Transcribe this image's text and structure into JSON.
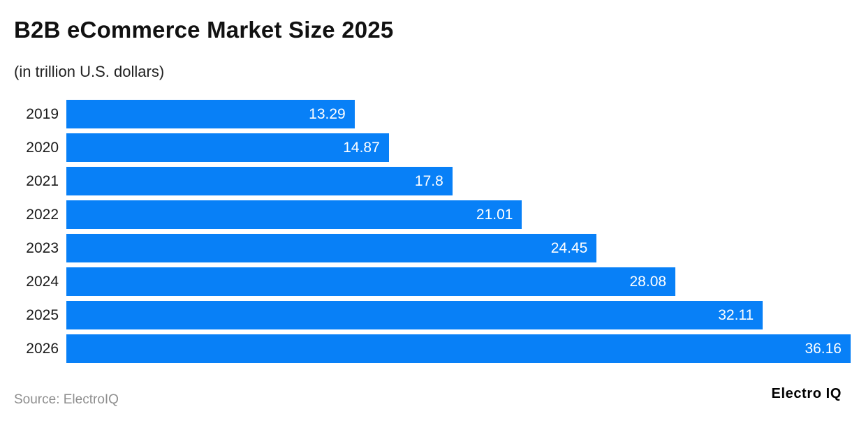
{
  "header": {
    "title": "B2B eCommerce Market Size 2025",
    "subtitle": "(in trillion U.S. dollars)"
  },
  "chart_data": {
    "type": "bar",
    "orientation": "horizontal",
    "title": "B2B eCommerce Market Size 2025",
    "subtitle": "(in trillion U.S. dollars)",
    "categories": [
      "2019",
      "2020",
      "2021",
      "2022",
      "2023",
      "2024",
      "2025",
      "2026"
    ],
    "values": [
      13.29,
      14.87,
      17.8,
      21.01,
      24.45,
      28.08,
      32.11,
      36.16
    ],
    "value_labels": [
      "13.29",
      "14.87",
      "17.8",
      "21.01",
      "24.45",
      "28.08",
      "32.11",
      "36.16"
    ],
    "xlabel": "",
    "ylabel": "Year",
    "xlim": [
      0,
      36.16
    ],
    "grid": false,
    "legend": false,
    "bar_color": "#0880f7",
    "value_label_color": "#ffffff",
    "value_label_position": "inside-end"
  },
  "footer": {
    "source": "Source: ElectroIQ",
    "logo": "Electro IQ"
  }
}
